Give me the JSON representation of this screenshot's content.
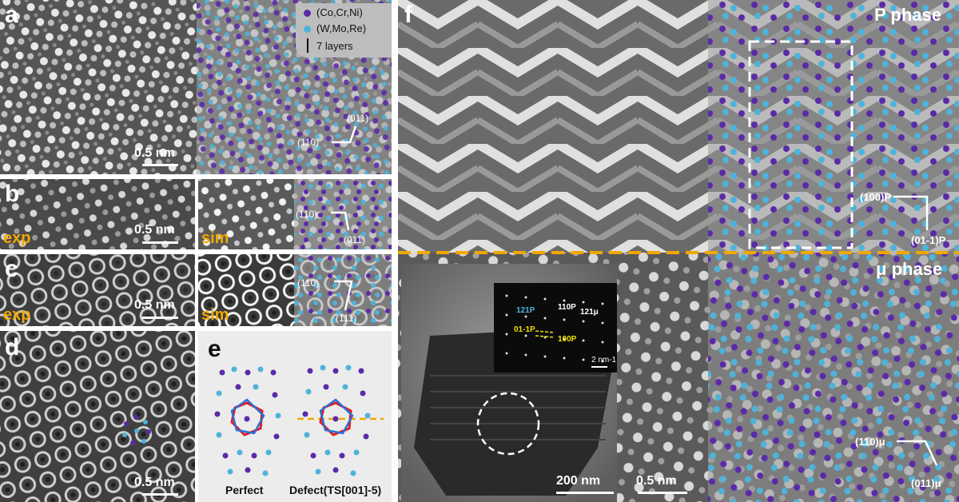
{
  "panels": {
    "a": {
      "label": "a",
      "scale": "0.5 nm",
      "idx1": "(011)",
      "idx2": "(110)"
    },
    "b": {
      "label": "b",
      "exp": "exp",
      "sim": "sim",
      "scale": "0.5 nm",
      "idx1": "(110)",
      "idx2": "(011)"
    },
    "c": {
      "label": "c",
      "exp": "exp",
      "sim": "sim",
      "scale": "0.5 nm",
      "idx1": "(110)",
      "idx2": "(111)"
    },
    "d": {
      "label": "d",
      "scale": "0.5 nm"
    },
    "e": {
      "label": "e",
      "perfect": "Perfect",
      "defect": "Defect(TS[001]-5)"
    },
    "f": {
      "label": "f",
      "p_phase": "P phase",
      "mu_phase": "μ phase",
      "p_idx1": "(100)P",
      "p_idx2": "(01-1)P",
      "mu_idx1": "(110)μ",
      "mu_idx2": "(011)μ",
      "tem_scale": "200 nm",
      "hr_scale": "0.5 nm",
      "diffraction": {
        "d1": "121P",
        "d2": "110P",
        "d3": "121μ",
        "d4": "01-1P",
        "d5": "100P",
        "scale": "2 nm-1"
      }
    }
  },
  "legend": {
    "item1": "(Co,Cr,Ni)",
    "item2": "(W,Mo,Re)",
    "item3": "7 layers"
  },
  "colors": {
    "atom_a": "#5b2aa8",
    "atom_b": "#4fb3d9",
    "accent": "#f0a800",
    "hex": "#e01b24",
    "pent": "#2a6fd6"
  }
}
